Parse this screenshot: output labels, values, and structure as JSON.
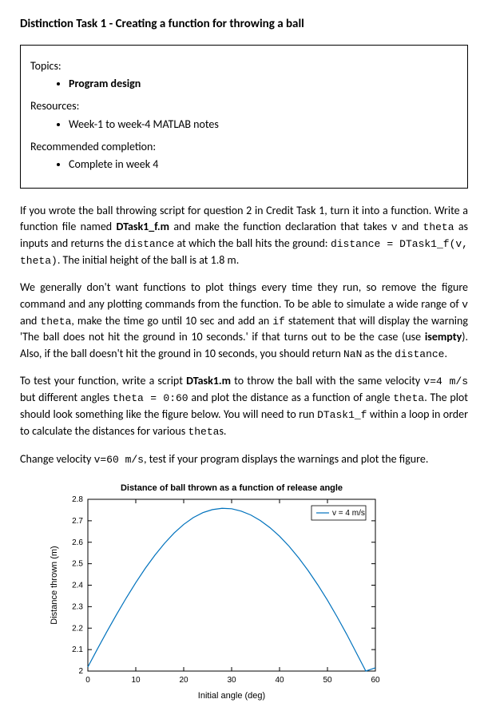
{
  "title": "Distinction Task 1 - Creating a function for throwing a ball",
  "box": {
    "topics_label": "Topics:",
    "topics": [
      "Program design"
    ],
    "resources_label": "Resources:",
    "resources": [
      "Week-1 to week-4 MATLAB notes"
    ],
    "completion_label": "Recommended completion:",
    "completion": [
      "Complete in week 4"
    ]
  },
  "para1_a": "If you wrote the ball throwing script for question 2 in Credit Task 1, turn it into a function. Write a function file named ",
  "para1_b": "DTask1_f.m",
  "para1_c": " and make the function declaration that takes ",
  "para1_v": "v",
  "para1_d": " and ",
  "para1_theta": "theta",
  "para1_e": " as inputs and returns the ",
  "para1_dist": "distance",
  "para1_f": " at which the ball hits the ground: ",
  "para1_code": "distance = DTask1_f(v, theta)",
  "para1_g": ". The initial height of the ball is at 1.8 m.",
  "para2_a": "We generally don't want functions to plot things every time they run, so remove the figure command and any plotting commands from the function. To be able to simulate a wide range of ",
  "para2_v": "v",
  "para2_b": " and ",
  "para2_theta": "theta",
  "para2_c": ", make the time go until 10 sec and add an ",
  "para2_if": "if",
  "para2_d": " statement that will display the warning 'The ball does not hit the ground in 10 seconds.' if that turns out to be the case (use ",
  "para2_isempty": "isempty",
  "para2_e": "). Also, if the ball doesn't hit the ground in 10 seconds, you should return ",
  "para2_nan": "NaN",
  "para2_f": " as the ",
  "para2_dist": "distance",
  "para2_g": ".",
  "para3_a": "To test your function, write a script ",
  "para3_b": "DTask1.m",
  "para3_c": " to throw the ball with the same velocity ",
  "para3_v4": "v=4 m/s",
  "para3_d": " but different angles ",
  "para3_theta": "theta = 0:60",
  "para3_e": " and plot the distance as a function of angle ",
  "para3_theta2": "theta",
  "para3_f": ". The plot should look something like the figure below. You will need to run ",
  "para3_fn": "DTask1_f",
  "para3_g": " within a loop in order to calculate the distances for various ",
  "para3_thetas": "theta",
  "para3_h": "s.",
  "para4_a": "Change velocity ",
  "para4_v60": "v=60 m/s",
  "para4_b": ", test if your program displays the warnings and plot the figure.",
  "chart": {
    "type": "line",
    "title": "Distance of ball thrown as a function of release angle",
    "xlabel": "Initial angle (deg)",
    "ylabel": "Distance thrown (m)",
    "xlim": [
      0,
      60
    ],
    "ylim": [
      2.0,
      2.8
    ],
    "xticks": [
      0,
      10,
      20,
      30,
      40,
      50,
      60
    ],
    "yticks": [
      2.0,
      2.1,
      2.2,
      2.3,
      2.4,
      2.5,
      2.6,
      2.7,
      2.8
    ],
    "ytick_labels": [
      "2",
      "2.1",
      "2.2",
      "2.3",
      "2.4",
      "2.5",
      "2.6",
      "2.7",
      "2.8"
    ],
    "line_color": "#0072bd",
    "line_width": 1.2,
    "legend": "v = 4 m/s",
    "background_color": "#ffffff",
    "axis_color": "#000000",
    "data_x": [
      0,
      2,
      4,
      6,
      8,
      10,
      12,
      14,
      16,
      18,
      20,
      22,
      24,
      26,
      28,
      30,
      32,
      34,
      36,
      38,
      40,
      42,
      44,
      46,
      48,
      50,
      52,
      54,
      56,
      58,
      60
    ],
    "data_y": [
      2.019,
      2.103,
      2.185,
      2.264,
      2.34,
      2.412,
      2.479,
      2.54,
      2.595,
      2.643,
      2.683,
      2.715,
      2.738,
      2.752,
      2.758,
      2.756,
      2.745,
      2.727,
      2.701,
      2.668,
      2.628,
      2.581,
      2.527,
      2.467,
      2.401,
      2.33,
      2.253,
      2.172,
      2.086,
      1.996,
      2.015
    ]
  }
}
